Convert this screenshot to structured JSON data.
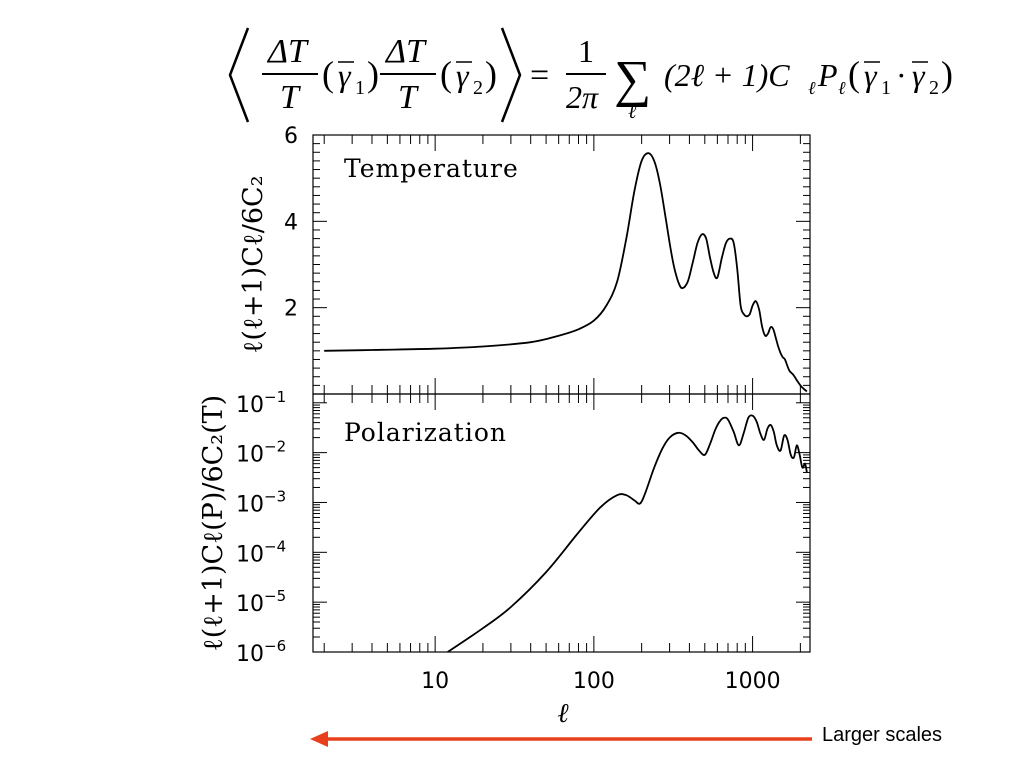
{
  "equation": {
    "lhs_symbol": "ΔT",
    "lhs_denominator": "T",
    "gamma": "γ",
    "sub1": "1",
    "sub2": "2",
    "equals": "=",
    "prefactor_num": "1",
    "prefactor_den": "2π",
    "sum": "∑",
    "sum_index": "ℓ",
    "summand": "(2ℓ + 1)C",
    "legendre": "P",
    "dot": "·"
  },
  "annotation": {
    "caption": "Larger scales",
    "arrow_color": "#e8401c"
  },
  "chart_data": [
    {
      "type": "line",
      "panel_label": "Temperature",
      "ylabel": "ℓ(ℓ+1)Cℓ/6C₂",
      "xscale": "log",
      "xlim": [
        1.7,
        2300
      ],
      "ylim": [
        0,
        6
      ],
      "yticks": [
        {
          "value": 2,
          "label": "2"
        },
        {
          "value": 4,
          "label": "4"
        },
        {
          "value": 6,
          "label": "6"
        }
      ],
      "x": [
        2,
        4,
        10,
        20,
        40,
        60,
        80,
        100,
        120,
        140,
        160,
        180,
        200,
        220,
        240,
        260,
        280,
        300,
        320,
        340,
        360,
        390,
        420,
        450,
        480,
        510,
        540,
        570,
        600,
        640,
        680,
        720,
        760,
        800,
        840,
        880,
        920,
        960,
        1000,
        1050,
        1100,
        1150,
        1200,
        1250,
        1300,
        1350,
        1400,
        1450,
        1500,
        1550,
        1600,
        1700,
        1800,
        1900,
        2000,
        2100,
        2200
      ],
      "y": [
        1.0,
        1.02,
        1.05,
        1.1,
        1.2,
        1.35,
        1.5,
        1.7,
        2.05,
        2.6,
        3.6,
        4.7,
        5.4,
        5.58,
        5.4,
        4.9,
        4.2,
        3.5,
        2.95,
        2.6,
        2.45,
        2.6,
        3.05,
        3.5,
        3.7,
        3.6,
        3.15,
        2.8,
        2.7,
        3.15,
        3.5,
        3.6,
        3.5,
        2.9,
        2.05,
        1.85,
        1.8,
        1.85,
        2.05,
        2.15,
        1.95,
        1.55,
        1.35,
        1.4,
        1.55,
        1.5,
        1.3,
        1.1,
        0.95,
        0.85,
        0.8,
        0.55,
        0.45,
        0.32,
        0.2,
        0.12,
        0.06
      ],
      "grid": false,
      "legend": "none"
    },
    {
      "type": "line",
      "panel_label": "Polarization",
      "ylabel": "ℓ(ℓ+1)Cℓ(P)/6C₂(T)",
      "xscale": "log",
      "yscale": "log",
      "xlim": [
        1.7,
        2300
      ],
      "ylim": [
        1e-06,
        0.15
      ],
      "yticks": [
        {
          "value": 1e-06,
          "base": "10",
          "exp": "−6"
        },
        {
          "value": 1e-05,
          "base": "10",
          "exp": "−5"
        },
        {
          "value": 0.0001,
          "base": "10",
          "exp": "−4"
        },
        {
          "value": 0.001,
          "base": "10",
          "exp": "−3"
        },
        {
          "value": 0.01,
          "base": "10",
          "exp": "−2"
        },
        {
          "value": 0.1,
          "base": "10",
          "exp": "−1"
        }
      ],
      "xticks": [
        {
          "value": 10,
          "label": "10"
        },
        {
          "value": 100,
          "label": "100"
        },
        {
          "value": 1000,
          "label": "1000"
        }
      ],
      "xlabel": "ℓ",
      "x": [
        12,
        20,
        30,
        50,
        80,
        110,
        140,
        160,
        180,
        195,
        210,
        240,
        270,
        300,
        340,
        380,
        420,
        460,
        500,
        540,
        580,
        620,
        660,
        700,
        760,
        820,
        880,
        940,
        1000,
        1060,
        1120,
        1180,
        1240,
        1300,
        1360,
        1420,
        1500,
        1580,
        1660,
        1740,
        1820,
        1900,
        1980,
        2060,
        2140,
        2200
      ],
      "y": [
        1e-06,
        3e-06,
        8e-06,
        4e-05,
        0.00025,
        0.0008,
        0.0014,
        0.0014,
        0.0011,
        0.00095,
        0.0015,
        0.005,
        0.012,
        0.02,
        0.025,
        0.022,
        0.016,
        0.011,
        0.009,
        0.015,
        0.028,
        0.042,
        0.05,
        0.046,
        0.026,
        0.014,
        0.025,
        0.05,
        0.055,
        0.042,
        0.024,
        0.018,
        0.03,
        0.036,
        0.026,
        0.014,
        0.011,
        0.022,
        0.018,
        0.009,
        0.008,
        0.014,
        0.009,
        0.005,
        0.006,
        0.004
      ],
      "grid": false,
      "legend": "none"
    }
  ]
}
